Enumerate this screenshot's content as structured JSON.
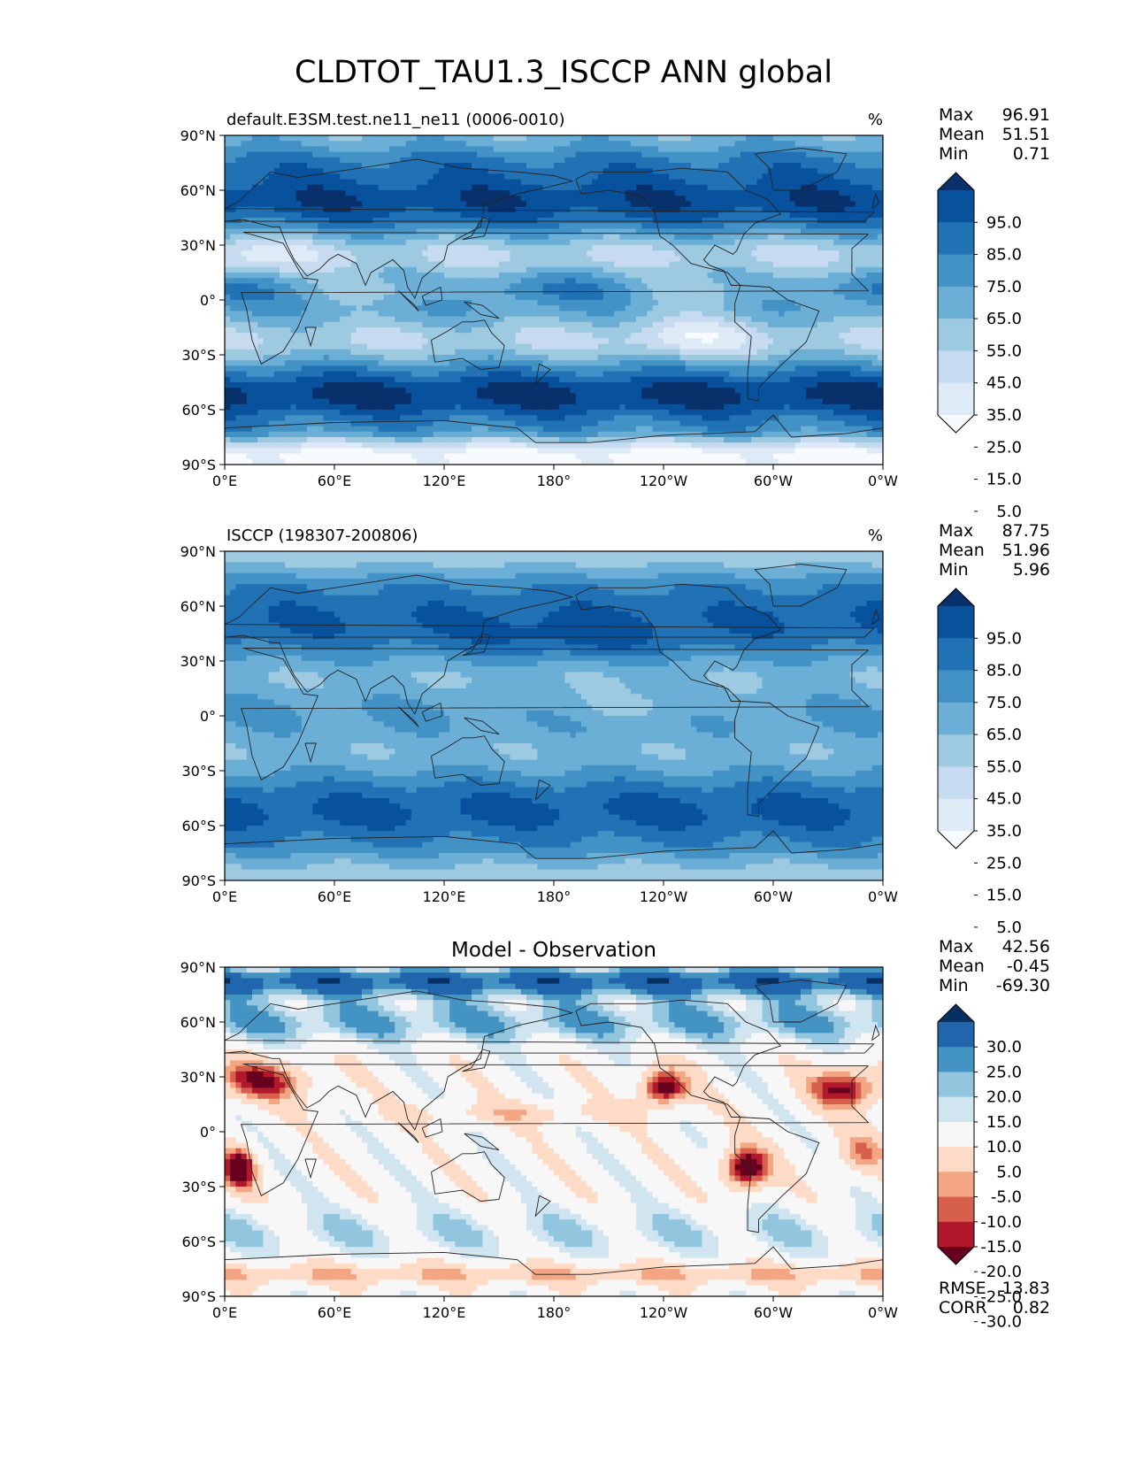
{
  "figure": {
    "title": "CLDTOT_TAU1.3_ISCCP ANN global"
  },
  "colors": {
    "blues": [
      "#f7fbff",
      "#deebf7",
      "#c6dbef",
      "#9ecae1",
      "#6baed6",
      "#4292c6",
      "#2171b5",
      "#08519c",
      "#08306b"
    ],
    "diff": [
      "#67001f",
      "#b2182b",
      "#d6604d",
      "#f4a582",
      "#fddbc7",
      "#f7f7f7",
      "#d1e5f0",
      "#92c5de",
      "#4393c3",
      "#2166ac",
      "#053061"
    ]
  },
  "chart_data": [
    {
      "type": "heatmap",
      "title": "default.E3SM.test.ne11_ne11 (0006-0010)",
      "units": "%",
      "x_ticks": [
        "0°E",
        "60°E",
        "120°E",
        "180°",
        "120°W",
        "60°W",
        "0°W"
      ],
      "y_ticks": [
        "90°N",
        "60°N",
        "30°N",
        "0°",
        "30°S",
        "60°S",
        "90°S"
      ],
      "stats": [
        {
          "label": "Max",
          "value": "96.91"
        },
        {
          "label": "Mean",
          "value": "51.51"
        },
        {
          "label": "Min",
          "value": "0.71"
        }
      ],
      "colorbar_labels": [
        "95.0",
        "85.0",
        "75.0",
        "65.0",
        "55.0",
        "45.0",
        "35.0",
        "25.0",
        "15.0",
        "5.0"
      ],
      "field": "model"
    },
    {
      "type": "heatmap",
      "title": "ISCCP (198307-200806)",
      "units": "%",
      "x_ticks": [
        "0°E",
        "60°E",
        "120°E",
        "180°",
        "120°W",
        "60°W",
        "0°W"
      ],
      "y_ticks": [
        "90°N",
        "60°N",
        "30°N",
        "0°",
        "30°S",
        "60°S",
        "90°S"
      ],
      "stats": [
        {
          "label": "Max",
          "value": "87.75"
        },
        {
          "label": "Mean",
          "value": "51.96"
        },
        {
          "label": "Min",
          "value": "5.96"
        }
      ],
      "colorbar_labels": [
        "95.0",
        "85.0",
        "75.0",
        "65.0",
        "55.0",
        "45.0",
        "35.0",
        "25.0",
        "15.0",
        "5.0"
      ],
      "field": "obs"
    },
    {
      "type": "heatmap",
      "title": "Model - Observation",
      "units": "",
      "x_ticks": [
        "0°E",
        "60°E",
        "120°E",
        "180°",
        "120°W",
        "60°W",
        "0°W"
      ],
      "y_ticks": [
        "90°N",
        "60°N",
        "30°N",
        "0°",
        "30°S",
        "60°S",
        "90°S"
      ],
      "stats": [
        {
          "label": "Max",
          "value": "42.56"
        },
        {
          "label": "Mean",
          "value": "-0.45"
        },
        {
          "label": "Min",
          "value": "-69.30"
        }
      ],
      "colorbar_labels": [
        "30.0",
        "25.0",
        "20.0",
        "15.0",
        "10.0",
        "5.0",
        "-5.0",
        "-10.0",
        "-15.0",
        "-20.0",
        "-25.0",
        "-30.0"
      ],
      "extra_stats": [
        {
          "label": "RMSE",
          "value": "13.83"
        },
        {
          "label": "CORR",
          "value": "0.82"
        }
      ],
      "field": "diff"
    }
  ]
}
